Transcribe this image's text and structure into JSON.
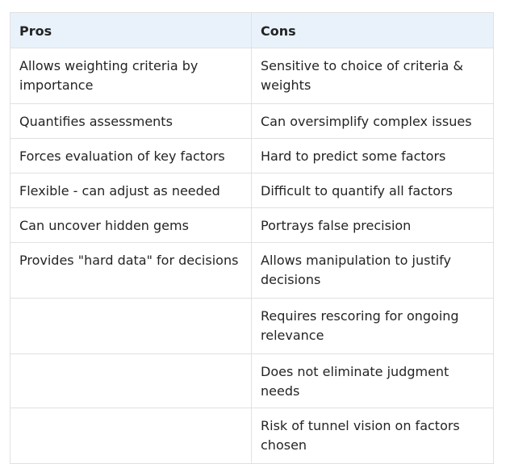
{
  "table": {
    "headers": [
      "Pros",
      "Cons"
    ],
    "rows": [
      [
        "Allows weighting criteria by importance",
        "Sensitive to choice of criteria & weights"
      ],
      [
        "Quantifies assessments",
        "Can oversimplify complex issues"
      ],
      [
        "Forces evaluation of key factors",
        "Hard to predict some factors"
      ],
      [
        "Flexible - can adjust as needed",
        "Difficult to quantify all factors"
      ],
      [
        "Can uncover hidden gems",
        "Portrays false precision"
      ],
      [
        "Provides \"hard data\" for decisions",
        "Allows manipulation to justify decisions"
      ],
      [
        "",
        "Requires rescoring for ongoing relevance"
      ],
      [
        "",
        "Does not eliminate judgment needs"
      ],
      [
        "",
        "Risk of tunnel vision on factors chosen"
      ]
    ]
  }
}
